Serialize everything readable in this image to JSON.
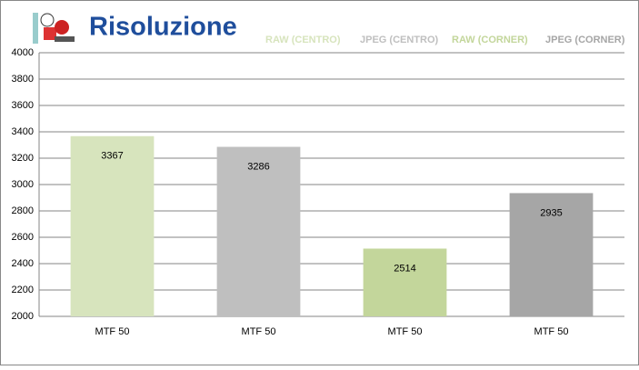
{
  "chart_data": {
    "type": "bar",
    "title": "Risoluzione",
    "categories": [
      "MTF 50",
      "MTF 50",
      "MTF 50",
      "MTF 50"
    ],
    "series": [
      {
        "name": "RAW (CENTRO)",
        "color": "#d7e4bd",
        "values": [
          3367,
          null,
          null,
          null
        ]
      },
      {
        "name": "JPEG (CENTRO)",
        "color": "#bfbfbf",
        "values": [
          null,
          3286,
          null,
          null
        ]
      },
      {
        "name": "RAW (CORNER)",
        "color": "#c3d69b",
        "values": [
          null,
          null,
          2514,
          null
        ]
      },
      {
        "name": "JPEG (CORNER)",
        "color": "#a6a6a6",
        "values": [
          null,
          null,
          null,
          2935
        ]
      }
    ],
    "ylim": [
      2000,
      4000
    ],
    "yticks": [
      2000,
      2200,
      2400,
      2600,
      2800,
      3000,
      3200,
      3400,
      3600,
      3800,
      4000
    ],
    "grid": true,
    "legend": "top"
  }
}
